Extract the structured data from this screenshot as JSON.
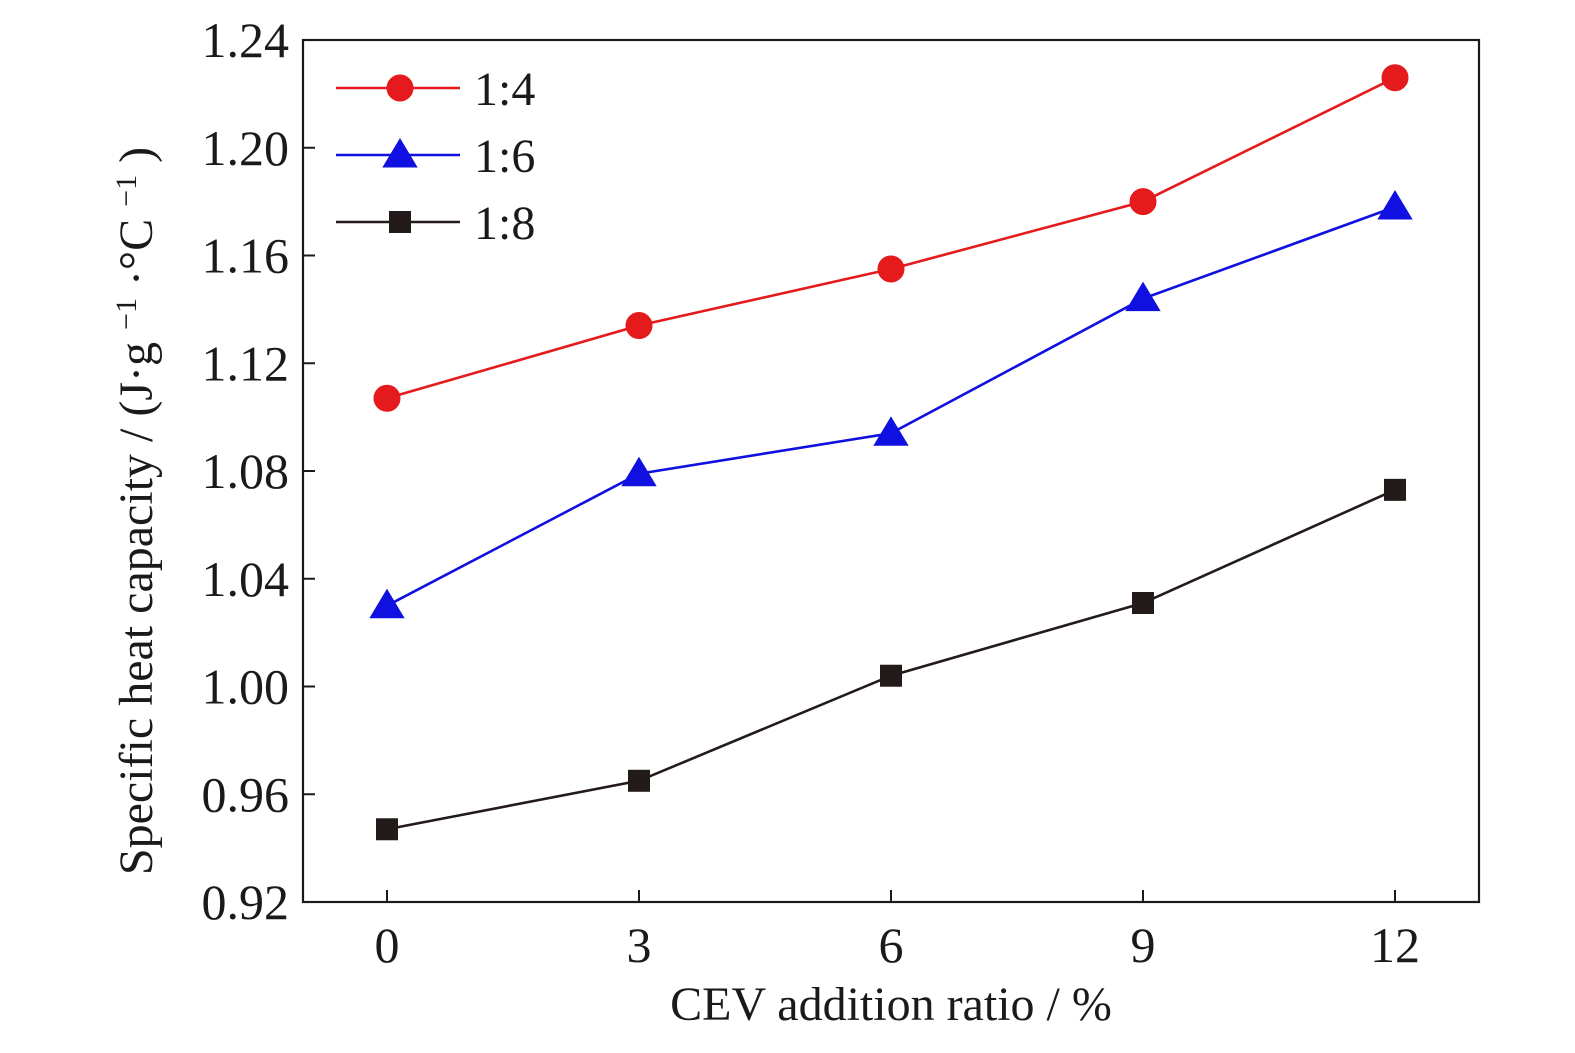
{
  "chart_data": {
    "type": "line",
    "xlabel": "CEV addition ratio / %",
    "ylabel": {
      "main": "Specific heat capacity / (J·g",
      "exp1": "−1",
      "mid": "·°C",
      "exp2": "−1",
      "end": ")"
    },
    "x": [
      0,
      3,
      6,
      9,
      12
    ],
    "xticks": [
      "0",
      "3",
      "6",
      "9",
      "12"
    ],
    "xlim": [
      -1,
      13
    ],
    "ylim": [
      0.92,
      1.24
    ],
    "yticks": [
      "0.92",
      "0.96",
      "1.00",
      "1.04",
      "1.08",
      "1.12",
      "1.16",
      "1.20",
      "1.24"
    ],
    "grid": false,
    "legend_position": "top-left",
    "series": [
      {
        "name": "1:4",
        "color": "#e41a1c",
        "marker": "circle",
        "values": [
          1.107,
          1.134,
          1.155,
          1.18,
          1.226
        ]
      },
      {
        "name": "1:6",
        "color": "#1010e0",
        "marker": "triangle",
        "values": [
          1.03,
          1.079,
          1.094,
          1.144,
          1.178
        ]
      },
      {
        "name": "1:8",
        "color": "#231a1a",
        "marker": "square",
        "values": [
          0.947,
          0.965,
          1.004,
          1.031,
          1.073
        ]
      }
    ]
  }
}
